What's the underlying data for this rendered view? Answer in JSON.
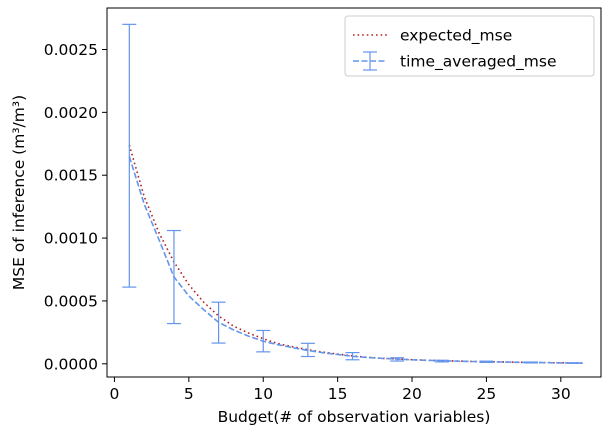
{
  "chart_data": {
    "type": "line",
    "xlabel": "Budget(# of observation variables)",
    "ylabel": "MSE of inference (m³/m³)",
    "xlim": [
      -0.5,
      32.7
    ],
    "ylim": [
      -0.000105,
      0.00283
    ],
    "xticks": [
      0,
      5,
      10,
      15,
      20,
      25,
      30
    ],
    "xtick_labels": [
      "0",
      "5",
      "10",
      "15",
      "20",
      "25",
      "30"
    ],
    "yticks": [
      0,
      0.0005,
      0.001,
      0.0015,
      0.002,
      0.0025
    ],
    "ytick_labels": [
      "0.0000",
      "0.0005",
      "0.0010",
      "0.0015",
      "0.0020",
      "0.0025"
    ],
    "grid": false,
    "legend_position": "top-right",
    "series": [
      {
        "name": "expected_mse",
        "style": "dotted",
        "color": "#b22222",
        "x": [
          1,
          2,
          3,
          4,
          5,
          6,
          7,
          8,
          9,
          10,
          11,
          12,
          13,
          14,
          15,
          16,
          17,
          18,
          19,
          20,
          21,
          22,
          23,
          24,
          25,
          26,
          27,
          28,
          29,
          30,
          31.4
        ],
        "y": [
          0.00174,
          0.00133,
          0.00104,
          0.00081,
          0.00063,
          0.00049,
          0.00038,
          0.0003,
          0.000245,
          0.0002,
          0.00016,
          0.000135,
          0.000112,
          9.3e-05,
          7.7e-05,
          6.3e-05,
          5.2e-05,
          4.4e-05,
          3.8e-05,
          3.3e-05,
          2.9e-05,
          2.5e-05,
          2.2e-05,
          1.9e-05,
          1.7e-05,
          1.5e-05,
          1.3e-05,
          1.1e-05,
          9e-06,
          8e-06,
          5e-06
        ]
      },
      {
        "name": "time_averaged_mse",
        "style": "dashed",
        "color": "#6495ed",
        "x": [
          1,
          2,
          3,
          4,
          5,
          6,
          7,
          8,
          9,
          10,
          11,
          12,
          13,
          14,
          15,
          16,
          17,
          18,
          19,
          20,
          21,
          22,
          23,
          24,
          25,
          26,
          27,
          28,
          29,
          30,
          31.4
        ],
        "y": [
          0.00165,
          0.00127,
          0.000985,
          0.00069,
          0.00054,
          0.00043,
          0.00033,
          0.00027,
          0.00022,
          0.00018,
          0.000152,
          0.000128,
          0.000106,
          8.8e-05,
          7.4e-05,
          6e-05,
          5e-05,
          4.3e-05,
          3.7e-05,
          3.2e-05,
          2.8e-05,
          2.4e-05,
          2.1e-05,
          1.8e-05,
          1.6e-05,
          1.4e-05,
          1.2e-05,
          1e-05,
          9e-06,
          7e-06,
          5e-06
        ],
        "error_x": [
          1,
          4,
          7,
          10,
          13,
          16,
          19,
          22,
          25,
          28,
          31
        ],
        "error_low": [
          0.00061,
          0.00032,
          0.000165,
          9.5e-05,
          5.8e-05,
          3.2e-05,
          2.2e-05,
          1.5e-05,
          1.1e-05,
          7e-06,
          4e-06
        ],
        "error_high": [
          0.0027,
          0.00106,
          0.00049,
          0.000265,
          0.000163,
          8.9e-05,
          4.8e-05,
          2.8e-05,
          2.1e-05,
          1.4e-05,
          8e-06
        ]
      }
    ]
  }
}
